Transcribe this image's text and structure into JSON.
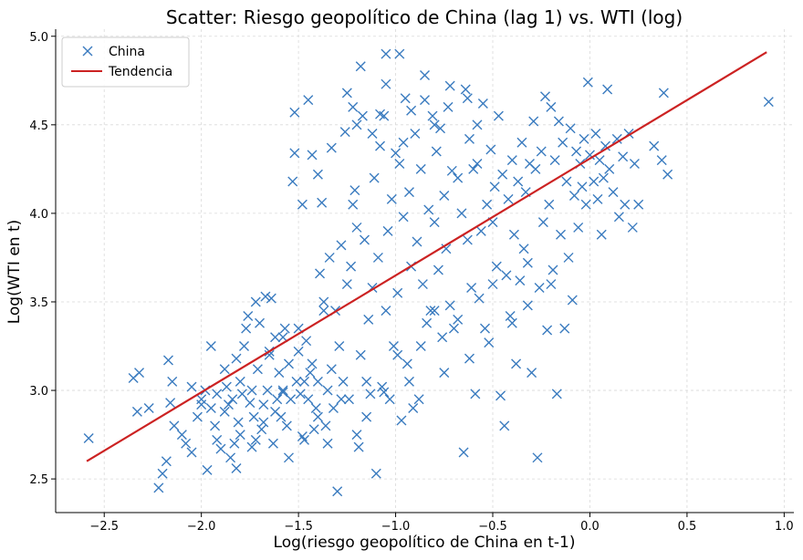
{
  "chart_data": {
    "type": "scatter",
    "title": "Scatter: Riesgo geopolítico de China (lag 1) vs. WTI (log)",
    "xlabel": "Log(riesgo geopolítico de China en t-1)",
    "ylabel": "Log(WTI en t)",
    "xlim": [
      -2.75,
      1.05
    ],
    "ylim": [
      2.31,
      5.04
    ],
    "xticks": [
      -2.5,
      -2.0,
      -1.5,
      -1.0,
      -0.5,
      0.0,
      0.5,
      1.0
    ],
    "xtick_labels": [
      "−2.5",
      "−2.0",
      "−1.5",
      "−1.0",
      "−0.5",
      "0.0",
      "0.5",
      "1.0"
    ],
    "yticks": [
      2.5,
      3.0,
      3.5,
      4.0,
      4.5,
      5.0
    ],
    "ytick_labels": [
      "2.5",
      "3.0",
      "3.5",
      "4.0",
      "4.5",
      "5.0"
    ],
    "grid": true,
    "legend_position": "top-left",
    "series": [
      {
        "name": "China",
        "kind": "scatter",
        "marker": "x",
        "color": "#3a7bbf",
        "points": [
          [
            -2.58,
            2.73
          ],
          [
            -2.35,
            3.07
          ],
          [
            -2.32,
            3.1
          ],
          [
            -2.33,
            2.88
          ],
          [
            -2.27,
            2.9
          ],
          [
            -2.22,
            2.45
          ],
          [
            -2.2,
            2.53
          ],
          [
            -2.18,
            2.6
          ],
          [
            -2.17,
            3.17
          ],
          [
            -2.16,
            2.93
          ],
          [
            -2.15,
            3.05
          ],
          [
            -2.14,
            2.8
          ],
          [
            -2.1,
            2.75
          ],
          [
            -2.08,
            2.7
          ],
          [
            -2.05,
            2.65
          ],
          [
            -2.02,
            2.85
          ],
          [
            -2.0,
            2.95
          ],
          [
            -1.98,
            3.0
          ],
          [
            -1.97,
            2.55
          ],
          [
            -1.95,
            2.9
          ],
          [
            -1.93,
            2.8
          ],
          [
            -1.92,
            2.72
          ],
          [
            -1.9,
            2.67
          ],
          [
            -1.88,
            2.88
          ],
          [
            -1.87,
            3.02
          ],
          [
            -1.85,
            2.62
          ],
          [
            -1.84,
            2.95
          ],
          [
            -1.83,
            2.7
          ],
          [
            -1.82,
            2.56
          ],
          [
            -1.81,
            2.82
          ],
          [
            -1.8,
            3.05
          ],
          [
            -1.79,
            2.98
          ],
          [
            -1.78,
            3.25
          ],
          [
            -1.77,
            3.35
          ],
          [
            -1.75,
            2.93
          ],
          [
            -1.74,
            3.0
          ],
          [
            -1.73,
            2.85
          ],
          [
            -1.72,
            2.72
          ],
          [
            -1.71,
            3.12
          ],
          [
            -1.7,
            3.38
          ],
          [
            -1.69,
            2.78
          ],
          [
            -1.68,
            2.92
          ],
          [
            -1.67,
            3.53
          ],
          [
            -1.66,
            3.0
          ],
          [
            -1.65,
            3.2
          ],
          [
            -1.64,
            3.52
          ],
          [
            -1.63,
            2.7
          ],
          [
            -1.62,
            3.3
          ],
          [
            -1.61,
            2.95
          ],
          [
            -1.6,
            3.1
          ],
          [
            -1.59,
            2.85
          ],
          [
            -1.58,
            3.0
          ],
          [
            -1.57,
            3.35
          ],
          [
            -1.56,
            2.8
          ],
          [
            -1.55,
            3.15
          ],
          [
            -1.54,
            2.95
          ],
          [
            -1.53,
            4.18
          ],
          [
            -1.52,
            4.34
          ],
          [
            -1.51,
            3.05
          ],
          [
            -1.5,
            3.22
          ],
          [
            -1.49,
            2.98
          ],
          [
            -1.48,
            4.05
          ],
          [
            -1.47,
            2.72
          ],
          [
            -1.46,
            3.28
          ],
          [
            -1.45,
            2.95
          ],
          [
            -1.44,
            3.1
          ],
          [
            -1.43,
            4.33
          ],
          [
            -1.42,
            2.78
          ],
          [
            -1.41,
            2.9
          ],
          [
            -1.4,
            3.05
          ],
          [
            -1.39,
            3.66
          ],
          [
            -1.38,
            4.06
          ],
          [
            -1.37,
            3.5
          ],
          [
            -1.36,
            2.8
          ],
          [
            -1.35,
            3.0
          ],
          [
            -1.34,
            3.75
          ],
          [
            -1.33,
            3.12
          ],
          [
            -1.32,
            2.9
          ],
          [
            -1.31,
            3.45
          ],
          [
            -1.3,
            2.43
          ],
          [
            -1.29,
            3.25
          ],
          [
            -1.28,
            3.82
          ],
          [
            -1.27,
            3.05
          ],
          [
            -1.26,
            4.46
          ],
          [
            -1.25,
            3.6
          ],
          [
            -1.24,
            2.95
          ],
          [
            -1.23,
            3.7
          ],
          [
            -1.22,
            4.6
          ],
          [
            -1.21,
            4.13
          ],
          [
            -1.2,
            3.92
          ],
          [
            -1.19,
            2.68
          ],
          [
            -1.18,
            3.2
          ],
          [
            -1.17,
            4.55
          ],
          [
            -1.16,
            3.85
          ],
          [
            -1.15,
            3.05
          ],
          [
            -1.14,
            3.4
          ],
          [
            -1.13,
            2.98
          ],
          [
            -1.12,
            3.58
          ],
          [
            -1.11,
            4.2
          ],
          [
            -1.1,
            2.53
          ],
          [
            -1.09,
            3.75
          ],
          [
            -1.08,
            4.38
          ],
          [
            -1.07,
            3.02
          ],
          [
            -1.06,
            4.55
          ],
          [
            -1.05,
            3.45
          ],
          [
            -1.04,
            3.9
          ],
          [
            -1.03,
            2.95
          ],
          [
            -1.02,
            4.08
          ],
          [
            -1.01,
            3.25
          ],
          [
            -1.0,
            4.34
          ],
          [
            -0.99,
            3.55
          ],
          [
            -0.98,
            4.28
          ],
          [
            -0.97,
            2.83
          ],
          [
            -0.96,
            3.98
          ],
          [
            -0.95,
            4.65
          ],
          [
            -0.94,
            3.15
          ],
          [
            -0.93,
            4.12
          ],
          [
            -0.92,
            3.7
          ],
          [
            -0.91,
            2.9
          ],
          [
            -0.9,
            4.45
          ],
          [
            -0.89,
            3.84
          ],
          [
            -0.88,
            2.95
          ],
          [
            -0.87,
            4.25
          ],
          [
            -0.86,
            3.6
          ],
          [
            -0.85,
            4.64
          ],
          [
            -0.84,
            3.38
          ],
          [
            -0.83,
            4.02
          ],
          [
            -0.82,
            3.45
          ],
          [
            -0.81,
            4.55
          ],
          [
            -0.8,
            3.95
          ],
          [
            -0.79,
            4.35
          ],
          [
            -0.78,
            3.68
          ],
          [
            -0.77,
            4.48
          ],
          [
            -0.76,
            3.3
          ],
          [
            -0.75,
            4.1
          ],
          [
            -0.74,
            3.8
          ],
          [
            -0.73,
            4.6
          ],
          [
            -0.72,
            3.48
          ],
          [
            -0.71,
            4.24
          ],
          [
            -0.7,
            3.35
          ],
          [
            -0.68,
            4.2
          ],
          [
            -0.66,
            4.0
          ],
          [
            -0.65,
            2.65
          ],
          [
            -0.64,
            4.7
          ],
          [
            -0.63,
            3.85
          ],
          [
            -0.62,
            4.42
          ],
          [
            -0.61,
            3.58
          ],
          [
            -0.6,
            4.25
          ],
          [
            -0.59,
            2.98
          ],
          [
            -0.58,
            4.5
          ],
          [
            -0.56,
            3.9
          ],
          [
            -0.55,
            4.62
          ],
          [
            -0.54,
            3.35
          ],
          [
            -0.53,
            4.05
          ],
          [
            -0.52,
            3.27
          ],
          [
            -0.51,
            4.36
          ],
          [
            -0.5,
            3.95
          ],
          [
            -0.49,
            4.15
          ],
          [
            -0.48,
            3.7
          ],
          [
            -0.47,
            4.55
          ],
          [
            -0.46,
            2.97
          ],
          [
            -0.45,
            4.22
          ],
          [
            -0.44,
            2.8
          ],
          [
            -0.43,
            3.65
          ],
          [
            -0.42,
            4.08
          ],
          [
            -0.41,
            3.42
          ],
          [
            -0.4,
            4.3
          ],
          [
            -0.39,
            3.88
          ],
          [
            -0.38,
            3.15
          ],
          [
            -0.37,
            4.18
          ],
          [
            -0.36,
            3.62
          ],
          [
            -0.35,
            4.4
          ],
          [
            -0.34,
            3.8
          ],
          [
            -0.33,
            4.12
          ],
          [
            -0.32,
            3.72
          ],
          [
            -0.31,
            4.28
          ],
          [
            -0.3,
            3.1
          ],
          [
            -0.29,
            4.52
          ],
          [
            -0.28,
            4.25
          ],
          [
            -0.27,
            2.62
          ],
          [
            -0.26,
            3.58
          ],
          [
            -0.25,
            4.35
          ],
          [
            -0.24,
            3.95
          ],
          [
            -0.23,
            4.66
          ],
          [
            -0.22,
            3.34
          ],
          [
            -0.21,
            4.05
          ],
          [
            -0.2,
            4.6
          ],
          [
            -0.19,
            3.68
          ],
          [
            -0.18,
            4.3
          ],
          [
            -0.17,
            2.98
          ],
          [
            -0.16,
            4.52
          ],
          [
            -0.15,
            3.88
          ],
          [
            -0.14,
            4.4
          ],
          [
            -0.13,
            3.35
          ],
          [
            -0.12,
            4.18
          ],
          [
            -0.11,
            3.75
          ],
          [
            -0.1,
            4.48
          ],
          [
            -0.09,
            3.51
          ],
          [
            -0.08,
            4.1
          ],
          [
            -0.07,
            4.35
          ],
          [
            -0.06,
            3.92
          ],
          [
            -0.05,
            4.28
          ],
          [
            -0.04,
            4.15
          ],
          [
            -0.03,
            4.42
          ],
          [
            -0.02,
            4.05
          ],
          [
            -0.01,
            4.74
          ],
          [
            0.0,
            4.33
          ],
          [
            0.02,
            4.18
          ],
          [
            0.03,
            4.45
          ],
          [
            0.04,
            4.08
          ],
          [
            0.05,
            4.3
          ],
          [
            0.06,
            3.88
          ],
          [
            0.07,
            4.2
          ],
          [
            0.08,
            4.38
          ],
          [
            0.09,
            4.7
          ],
          [
            0.1,
            4.25
          ],
          [
            0.12,
            4.12
          ],
          [
            0.14,
            4.42
          ],
          [
            0.15,
            3.98
          ],
          [
            0.17,
            4.32
          ],
          [
            0.18,
            4.05
          ],
          [
            0.2,
            4.45
          ],
          [
            0.22,
            3.92
          ],
          [
            0.23,
            4.28
          ],
          [
            0.25,
            4.05
          ],
          [
            0.33,
            4.38
          ],
          [
            0.37,
            4.3
          ],
          [
            0.38,
            4.68
          ],
          [
            0.4,
            4.22
          ],
          [
            0.92,
            4.63
          ],
          [
            -1.25,
            4.68
          ],
          [
            -1.05,
            4.9
          ],
          [
            -0.98,
            4.9
          ],
          [
            -0.85,
            4.78
          ],
          [
            -1.18,
            4.83
          ],
          [
            -1.45,
            4.64
          ],
          [
            -1.52,
            4.57
          ],
          [
            -0.72,
            4.72
          ],
          [
            -1.05,
            4.73
          ],
          [
            -0.63,
            4.65
          ],
          [
            -1.08,
            4.56
          ],
          [
            -1.2,
            4.5
          ],
          [
            -1.12,
            4.45
          ],
          [
            -0.92,
            4.58
          ],
          [
            -0.8,
            4.5
          ],
          [
            -1.4,
            4.22
          ],
          [
            -1.33,
            4.37
          ],
          [
            -1.22,
            4.05
          ],
          [
            -0.96,
            4.4
          ],
          [
            -0.58,
            4.28
          ],
          [
            -1.58,
            2.99
          ],
          [
            -1.47,
            3.05
          ],
          [
            -1.4,
            2.85
          ],
          [
            -1.35,
            2.7
          ],
          [
            -1.28,
            2.95
          ],
          [
            -1.2,
            2.75
          ],
          [
            -1.15,
            2.85
          ],
          [
            -1.06,
            2.99
          ],
          [
            -0.99,
            3.2
          ],
          [
            -0.93,
            3.05
          ],
          [
            -0.87,
            3.25
          ],
          [
            -0.8,
            3.45
          ],
          [
            -0.75,
            3.1
          ],
          [
            -0.68,
            3.4
          ],
          [
            -0.62,
            3.18
          ],
          [
            -0.57,
            3.52
          ],
          [
            -0.5,
            3.6
          ],
          [
            -0.4,
            3.38
          ],
          [
            -0.32,
            3.48
          ],
          [
            -0.2,
            3.6
          ],
          [
            -1.95,
            3.25
          ],
          [
            -1.88,
            3.12
          ],
          [
            -1.82,
            3.18
          ],
          [
            -1.76,
            3.42
          ],
          [
            -1.72,
            3.5
          ],
          [
            -1.65,
            3.22
          ],
          [
            -1.58,
            3.3
          ],
          [
            -1.5,
            3.35
          ],
          [
            -1.43,
            3.15
          ],
          [
            -1.37,
            3.45
          ],
          [
            -2.05,
            3.02
          ],
          [
            -2.0,
            2.92
          ],
          [
            -1.92,
            2.98
          ],
          [
            -1.86,
            2.92
          ],
          [
            -1.8,
            2.75
          ],
          [
            -1.74,
            2.68
          ],
          [
            -1.68,
            2.82
          ],
          [
            -1.62,
            2.88
          ],
          [
            -1.55,
            2.62
          ],
          [
            -1.48,
            2.74
          ]
        ]
      },
      {
        "name": "Tendencia",
        "kind": "line",
        "color": "#cc2222",
        "x": [
          -2.59,
          0.91
        ],
        "y": [
          2.6,
          4.91
        ]
      }
    ]
  }
}
